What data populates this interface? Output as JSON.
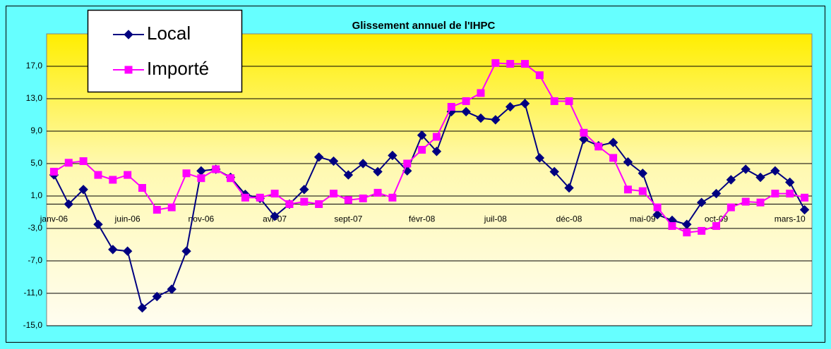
{
  "chart_data": {
    "type": "line",
    "title": "Glissement annuel de l'IHPC",
    "categories": [
      "janv-06",
      null,
      null,
      null,
      null,
      "juin-06",
      null,
      null,
      null,
      null,
      "nov-06",
      null,
      null,
      null,
      null,
      "avr-07",
      null,
      null,
      null,
      null,
      "sept-07",
      null,
      null,
      null,
      null,
      "févr-08",
      null,
      null,
      null,
      null,
      "juil-08",
      null,
      null,
      null,
      null,
      "déc-08",
      null,
      null,
      null,
      null,
      "mai-09",
      null,
      null,
      null,
      null,
      "oct-09",
      null,
      null,
      null,
      null,
      "mars-10",
      null
    ],
    "series": [
      {
        "name": "Local",
        "color": "#000080",
        "values": [
          3.6,
          0.0,
          1.8,
          -2.5,
          -5.6,
          -5.8,
          -12.8,
          -11.4,
          -10.5,
          -5.8,
          4.1,
          4.3,
          3.3,
          1.2,
          0.7,
          -1.5,
          0.0,
          1.8,
          5.8,
          5.3,
          3.6,
          5.0,
          4.0,
          6.0,
          4.1,
          8.5,
          6.5,
          11.4,
          11.4,
          10.6,
          10.4,
          12.0,
          12.4,
          5.7,
          4.0,
          2.0,
          8.0,
          7.2,
          7.6,
          5.2,
          3.8,
          -1.3,
          -2.0,
          -2.5,
          0.2,
          1.3,
          3.0,
          4.3,
          3.3,
          4.1,
          2.7,
          -0.7
        ]
      },
      {
        "name": "Importé",
        "color": "#ff00ff",
        "values": [
          4.0,
          5.1,
          5.3,
          3.6,
          3.0,
          3.6,
          2.0,
          -0.7,
          -0.4,
          3.8,
          3.2,
          4.3,
          3.2,
          0.8,
          0.8,
          1.3,
          0.0,
          0.3,
          0.0,
          1.3,
          0.5,
          0.7,
          1.4,
          0.8,
          5.0,
          6.7,
          8.3,
          12.0,
          12.7,
          13.7,
          17.4,
          17.3,
          17.3,
          15.9,
          12.7,
          12.7,
          8.8,
          7.1,
          5.7,
          1.8,
          1.6,
          -0.4,
          -2.7,
          -3.5,
          -3.3,
          -2.7,
          -0.4,
          0.3,
          0.2,
          1.3,
          1.3,
          0.8
        ]
      }
    ],
    "ylim": [
      -15,
      21
    ],
    "yticks": [
      {
        "value": -15,
        "label": "-15,0"
      },
      {
        "value": -11,
        "label": "-11,0"
      },
      {
        "value": -7,
        "label": "-7,0"
      },
      {
        "value": -3,
        "label": "-3,0"
      },
      {
        "value": 1,
        "label": "1,0"
      },
      {
        "value": 5,
        "label": "5,0"
      },
      {
        "value": 9,
        "label": "9,0"
      },
      {
        "value": 13,
        "label": "13,0"
      },
      {
        "value": 17,
        "label": "17,0"
      }
    ],
    "grid": true,
    "legend": "top-left"
  }
}
